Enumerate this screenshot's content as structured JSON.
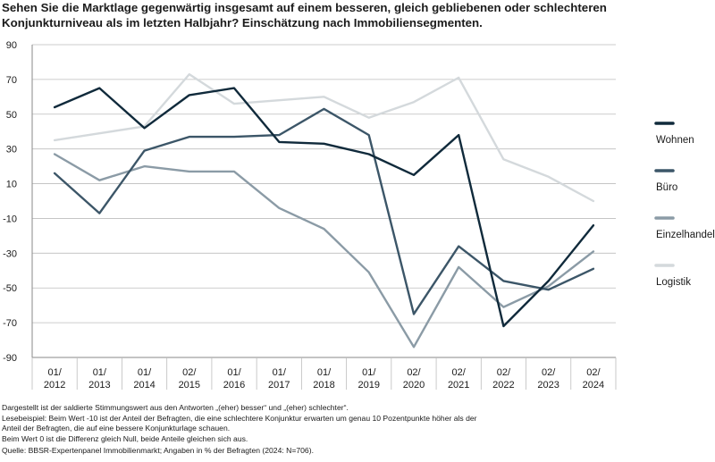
{
  "title": {
    "line1": "Sehen Sie die Marktlage gegenwärtig insgesamt auf einem besseren, gleich gebliebenen oder schlechteren",
    "line2": "Konjunkturniveau als im letzten Halbjahr? Einschätzung nach Immobiliensegmenten."
  },
  "chart_data": {
    "type": "line",
    "categories": [
      [
        "01/",
        "2012"
      ],
      [
        "01/",
        "2013"
      ],
      [
        "01/",
        "2014"
      ],
      [
        "02/",
        "2015"
      ],
      [
        "01/",
        "2016"
      ],
      [
        "01/",
        "2017"
      ],
      [
        "01/",
        "2018"
      ],
      [
        "01/",
        "2019"
      ],
      [
        "02/",
        "2020"
      ],
      [
        "02/",
        "2021"
      ],
      [
        "02/",
        "2022"
      ],
      [
        "02/",
        "2023"
      ],
      [
        "02/",
        "2024"
      ]
    ],
    "ylim": [
      -90,
      90
    ],
    "yticks": [
      90,
      70,
      50,
      30,
      10,
      -10,
      -30,
      -50,
      -70,
      -90
    ],
    "grid": true,
    "legend_position": "right",
    "series": [
      {
        "name": "Wohnen",
        "color": "#102a3b",
        "values": [
          54,
          65,
          42,
          61,
          65,
          34,
          33,
          27,
          15,
          38,
          -72,
          -46,
          -14
        ]
      },
      {
        "name": "Büro",
        "color": "#3c5668",
        "values": [
          16,
          -7,
          29,
          37,
          37,
          38,
          53,
          38,
          -65,
          -26,
          -46,
          -51,
          -39
        ]
      },
      {
        "name": "Einzelhandel",
        "color": "#8b9ba6",
        "values": [
          27,
          12,
          20,
          17,
          17,
          -4,
          -16,
          -41,
          -84,
          -38,
          -61,
          -49,
          -29
        ]
      },
      {
        "name": "Logistik",
        "color": "#d4d9dc",
        "values": [
          35,
          39,
          43,
          73,
          56,
          58,
          60,
          48,
          57,
          71,
          24,
          14,
          0
        ]
      }
    ]
  },
  "footnotes": {
    "line1": "Dargestellt ist der saldierte Stimmungswert aus den Antworten „(eher) besser“ und „(eher) schlechter“.",
    "line2": "Lesebeispiel: Beim Wert -10 ist der Anteil der Befragten, die eine schlechtere Konjunktur erwarten um genau 10 Pozentpunkte höher als der",
    "line3": "Anteil der Befragten, die auf eine bessere Konjunkturlage schauen.",
    "line4": "Beim Wert 0 ist die Differenz gleich Null, beide Anteile gleichen sich aus.",
    "source": "Quelle: BBSR-Expertenpanel Immobilienmarkt; Angaben in % der Befragten (2024: N=706)."
  }
}
